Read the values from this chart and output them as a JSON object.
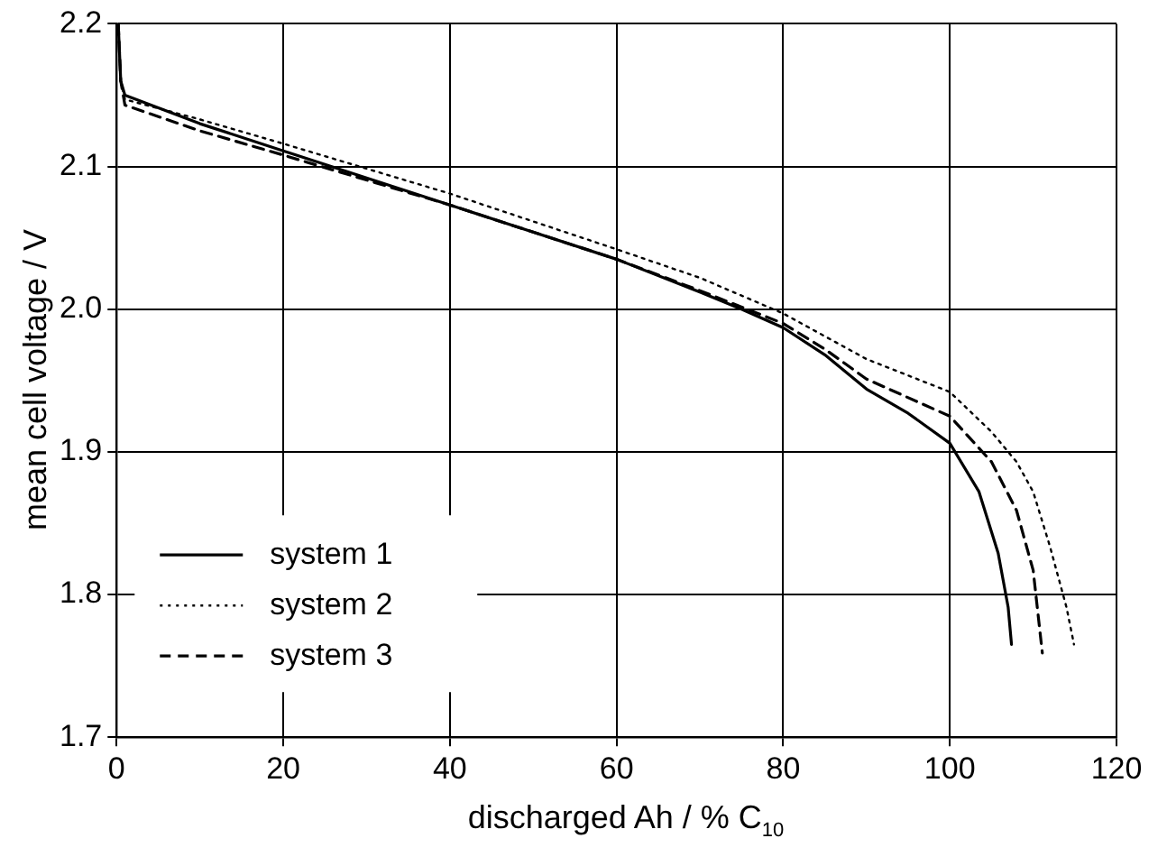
{
  "chart_data": {
    "type": "line",
    "xlabel": "discharged Ah / % C$_{10}$",
    "ylabel": "mean cell voltage / V",
    "xlim": [
      0,
      120
    ],
    "xticks": [
      0,
      20,
      40,
      60,
      80,
      100,
      120
    ],
    "ylim": [
      1.7,
      2.2
    ],
    "yticks": [
      1.7,
      1.8,
      1.9,
      {
        "value": 2,
        "label": "2.0"
      },
      2.1,
      2.2
    ],
    "grid": true,
    "legend": "bottom left",
    "marker": "none",
    "series": [
      {
        "name": "system 1",
        "color": "#000000",
        "line_style": "solid",
        "x": [
          0.2,
          0.5,
          1,
          10,
          20,
          40,
          60,
          70,
          75,
          80,
          85,
          90,
          95,
          100,
          103.5,
          105.8,
          107,
          107.4
        ],
        "values": [
          2.2,
          2.16,
          2.15,
          2.13,
          2.111,
          2.073,
          2.035,
          2.012,
          2.0,
          1.987,
          1.968,
          1.944,
          1.927,
          1.906,
          1.872,
          1.829,
          1.791,
          1.765
        ]
      },
      {
        "name": "system 2",
        "color": "#000000",
        "line_style": "dotted",
        "x": [
          0.2,
          0.5,
          1,
          10,
          20,
          40,
          60,
          70,
          80,
          90,
          100,
          105,
          108,
          110,
          112,
          114,
          114.9
        ],
        "values": [
          2.2,
          2.16,
          2.147,
          2.133,
          2.116,
          2.081,
          2.042,
          2.022,
          1.997,
          1.965,
          1.942,
          1.914,
          1.893,
          1.872,
          1.834,
          1.791,
          1.765
        ]
      },
      {
        "name": "system 3",
        "color": "#000000",
        "line_style": "dashed",
        "x": [
          0.2,
          0.5,
          1,
          10,
          20,
          40,
          60,
          70,
          80,
          85,
          90,
          100,
          105,
          108,
          110,
          111.1
        ],
        "values": [
          2.2,
          2.16,
          2.143,
          2.125,
          2.108,
          2.073,
          2.035,
          2.013,
          1.99,
          1.972,
          1.951,
          1.925,
          1.893,
          1.859,
          1.817,
          1.759
        ]
      }
    ]
  }
}
